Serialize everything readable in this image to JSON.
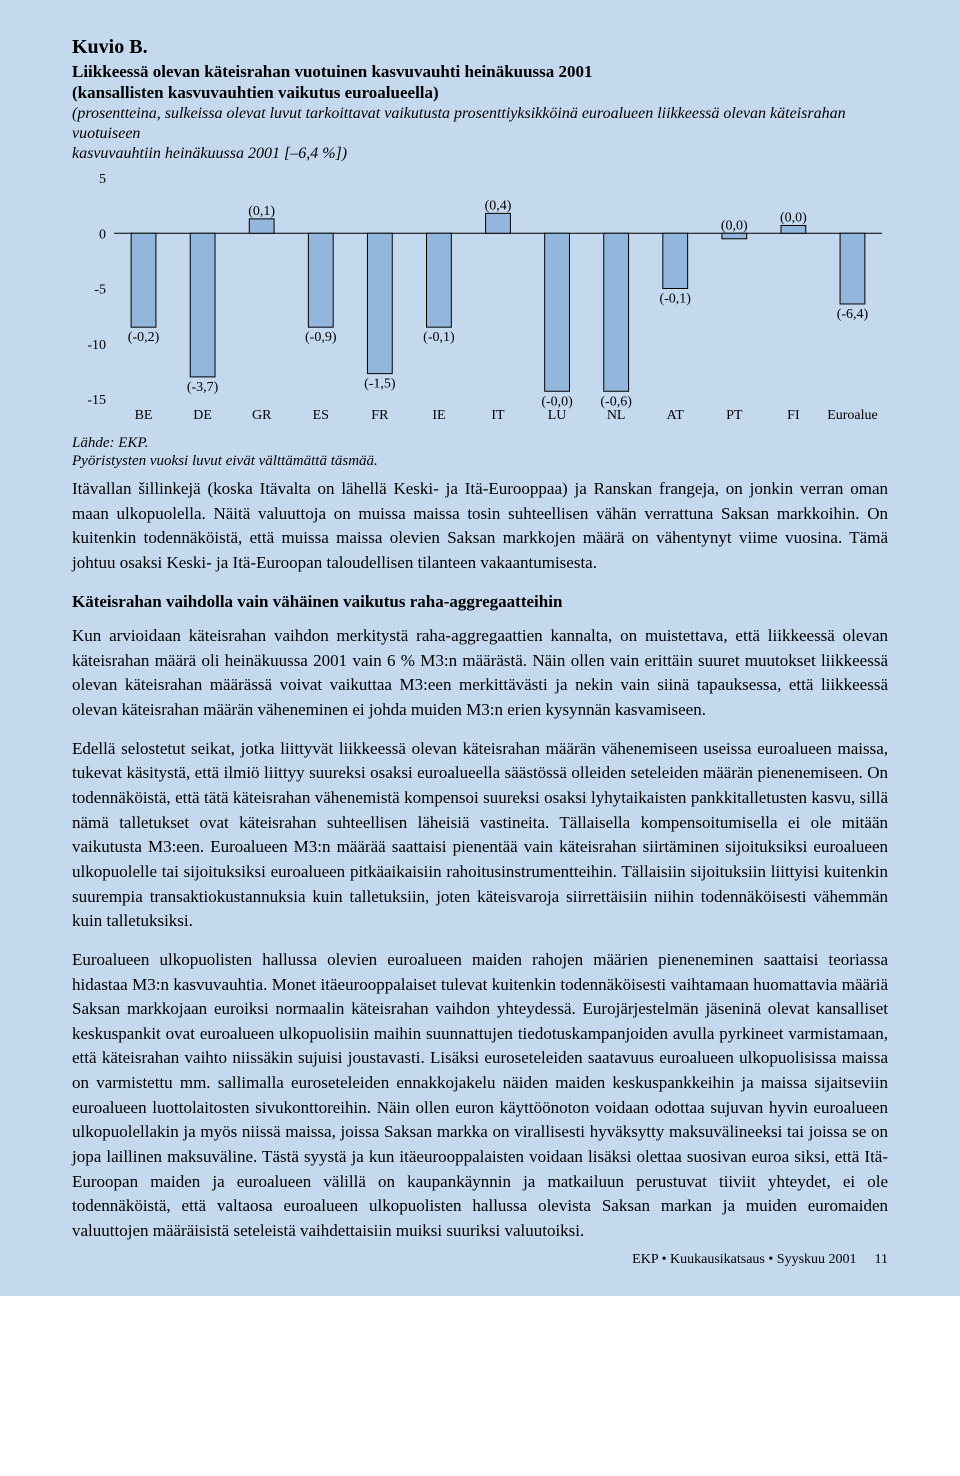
{
  "chart": {
    "title_prefix": "Kuvio B.",
    "title_line1": "Liikkeessä olevan käteisrahan vuotuinen kasvuvauhti heinäkuussa 2001",
    "title_line2": "(kansallisten kasvuvauhtien vaikutus euroalueella)",
    "note_line1": "(prosentteina, sulkeissa olevat luvut tarkoittavat vaikutusta prosenttiyksikköinä euroalueen liikkeessä olevan käteisrahan vuotuiseen",
    "note_line2": "kasvuvauhtiin heinäkuussa 2001 [–6,4 %])",
    "type": "bar",
    "categories": [
      "BE",
      "DE",
      "GR",
      "ES",
      "FR",
      "IE",
      "IT",
      "LU",
      "NL",
      "AT",
      "PT",
      "FI",
      "Euroalue"
    ],
    "values": [
      -8.5,
      -13.0,
      1.3,
      -8.5,
      -12.7,
      -8.5,
      1.8,
      -14.3,
      -14.3,
      -5.0,
      -0.5,
      0.7,
      -6.4
    ],
    "labels": [
      "(-0,2)",
      "(-3,7)",
      "(0,1)",
      "(-0,9)",
      "(-1,5)",
      "(-0,1)",
      "(0,4)",
      "(-0,0)",
      "(-0,6)",
      "(-0,1)",
      "(0,0)",
      "(0,0)",
      "(-6,4)"
    ],
    "label_above": [
      false,
      false,
      true,
      false,
      false,
      false,
      true,
      false,
      false,
      false,
      true,
      true,
      false
    ],
    "ylim": [
      -15,
      5
    ],
    "ytick_step": 5,
    "background_color": "#c4d9ee",
    "bar_color": "#93b6dc",
    "bar_border": "#000000",
    "axis_color": "#000000",
    "label_fontsize": 14,
    "axis_fontsize": 14,
    "caption1": "Lähde: EKP.",
    "caption2": "Pyöristysten vuoksi luvut eivät välttämättä täsmää."
  },
  "paragraphs": {
    "p1": "Itävallan šillinkejä (koska Itävalta on lähellä Keski- ja Itä-Eurooppaa) ja Ranskan frangeja, on jonkin verran oman maan ulkopuolella. Näitä valuuttoja on muissa maissa tosin suhteellisen vähän verrattuna Saksan markkoihin. On kuitenkin todennäköistä, että muissa maissa olevien Saksan markkojen määrä on vähentynyt viime vuosina. Tämä johtuu osaksi Keski- ja Itä-Euroopan taloudellisen tilanteen vakaantumisesta.",
    "heading": "Käteisrahan vaihdolla vain vähäinen vaikutus raha-aggregaatteihin",
    "p2": "Kun arvioidaan käteisrahan vaihdon merkitystä raha-aggregaattien kannalta, on muistettava, että liikkeessä olevan käteisrahan määrä oli heinäkuussa 2001 vain 6 % M3:n määrästä. Näin ollen vain erittäin suuret muutokset liikkeessä olevan käteisrahan määrässä voivat vaikuttaa M3:een merkittävästi ja nekin vain siinä tapauksessa, että liikkeessä olevan käteisrahan määrän väheneminen ei johda muiden M3:n erien kysynnän kasvamiseen.",
    "p3": "Edellä selostetut seikat, jotka liittyvät liikkeessä olevan käteisrahan määrän vähenemiseen useissa euroalueen maissa, tukevat käsitystä, että ilmiö liittyy suureksi osaksi euroalueella säästössä olleiden seteleiden määrän pienenemiseen. On todennäköistä, että tätä käteisrahan vähenemistä kompensoi suureksi osaksi lyhytaikaisten pankkitalletusten kasvu, sillä nämä talletukset ovat käteisrahan suhteellisen läheisiä vastineita. Tällaisella kompensoitumisella ei ole mitään vaikutusta M3:een. Euroalueen M3:n määrää saattaisi pienentää vain käteisrahan siirtäminen sijoituksiksi euroalueen ulkopuolelle tai sijoituksiksi euroalueen pitkäaikaisiin rahoitusinstrumentteihin. Tällaisiin sijoituksiin liittyisi kuitenkin suurempia transaktiokustannuksia kuin talletuksiin, joten käteisvaroja siirrettäisiin niihin todennäköisesti vähemmän kuin talletuksiksi.",
    "p4": "Euroalueen ulkopuolisten hallussa olevien euroalueen maiden rahojen määrien pieneneminen saattaisi teoriassa hidastaa M3:n kasvuvauhtia. Monet itäeurooppalaiset tulevat kuitenkin todennäköisesti vaihtamaan huomattavia määriä Saksan markkojaan euroiksi normaalin käteisrahan vaihdon yhteydessä. Eurojärjestelmän jäseninä olevat kansalliset keskuspankit ovat euroalueen ulkopuolisiin maihin suunnattujen tiedotuskampanjoiden avulla pyrkineet varmistamaan, että käteisrahan vaihto niissäkin sujuisi joustavasti. Lisäksi euroseteleiden saatavuus euroalueen ulkopuolisissa maissa on varmistettu mm. sallimalla euroseteleiden ennakkojakelu näiden maiden keskuspankkeihin ja maissa sijaitseviin euroalueen luottolaitosten sivukonttoreihin. Näin ollen euron käyttöönoton voidaan odottaa sujuvan hyvin euroalueen ulkopuolellakin ja myös niissä maissa, joissa Saksan markka on virallisesti hyväksytty maksuvälineeksi tai joissa se on jopa laillinen maksuväline. Tästä syystä ja kun itäeurooppalaisten voidaan lisäksi olettaa suosivan euroa siksi, että Itä-Euroopan maiden ja euroalueen välillä on kaupankäynnin ja matkailuun perustuvat tiiviit yhteydet, ei ole todennäköistä, että valtaosa euroalueen ulkopuolisten hallussa olevista Saksan markan ja muiden euromaiden valuuttojen määräisistä seteleistä vaihdettaisiin muiksi suuriksi valuutoiksi."
  },
  "footer": {
    "text": "EKP • Kuukausikatsaus • Syyskuu 2001",
    "page": "11"
  }
}
